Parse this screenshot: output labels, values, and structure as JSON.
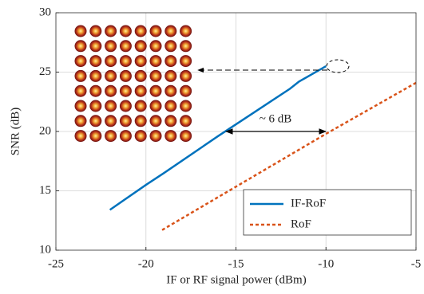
{
  "chart_data": {
    "type": "line",
    "xlabel": "IF or RF signal power (dBm)",
    "ylabel": "SNR (dB)",
    "xlim": [
      -25,
      -5
    ],
    "xticks": [
      -25,
      -20,
      -15,
      -10,
      -5
    ],
    "ylim": [
      10,
      30
    ],
    "yticks": [
      10,
      15,
      20,
      25,
      30
    ],
    "grid": true,
    "legend": "lower right",
    "annotations": [
      "~ 6 dB"
    ],
    "series": [
      {
        "name": "IF-RoF",
        "color": "#0072bd",
        "dash": "solid",
        "x": [
          -22,
          -20,
          -19,
          -16,
          -14,
          -12,
          -11.5,
          -10
        ],
        "values": [
          13.4,
          15.5,
          16.5,
          19.6,
          21.6,
          23.6,
          24.2,
          25.5
        ]
      },
      {
        "name": "RoF",
        "color": "#d95319",
        "dash": "dashed",
        "x": [
          -19.1,
          -10,
          -5
        ],
        "values": [
          11.7,
          19.8,
          24.1
        ]
      }
    ]
  }
}
